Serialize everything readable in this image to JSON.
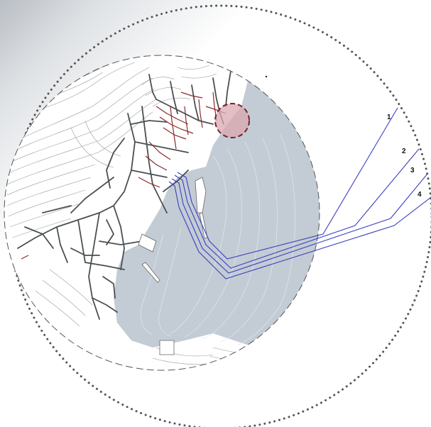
{
  "map": {
    "route_labels": [
      "1",
      "2",
      "3",
      "4"
    ],
    "colors": {
      "sea": "#c3ccd4",
      "land_contours": "#9a9a9a",
      "streets": "#4a4f52",
      "historic_streets": "#8c2a2a",
      "routes": "#3a3fbf",
      "highlight_fill": "#d9a8b0",
      "highlight_stroke": "#7a2030",
      "outer_ring": "#555555"
    }
  }
}
